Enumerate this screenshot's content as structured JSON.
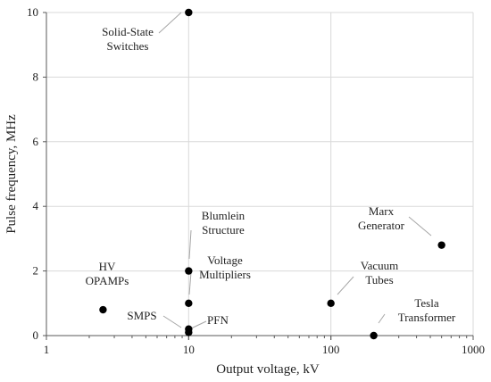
{
  "chart_data": {
    "type": "scatter",
    "title": "",
    "xlabel": "Output voltage, kV",
    "ylabel": "Pulse frequency, MHz",
    "xscale": "log",
    "xlim": [
      1,
      1000
    ],
    "ylim": [
      0,
      10
    ],
    "xticks": [
      "1",
      "10",
      "100",
      "1000"
    ],
    "yticks": [
      "0",
      "2",
      "4",
      "6",
      "8",
      "10"
    ],
    "grid": true,
    "legend": "none",
    "marker_color": "#000000",
    "points": [
      {
        "label": [
          "Solid-State",
          "Switches"
        ],
        "x": 10,
        "y": 10
      },
      {
        "label": [
          "Blumlein",
          "Structure"
        ],
        "x": 10,
        "y": 2.0
      },
      {
        "label": [
          "Voltage",
          "Multipliers"
        ],
        "x": 10,
        "y": 1.0
      },
      {
        "label": [
          "SMPS"
        ],
        "x": 10,
        "y": 0.2
      },
      {
        "label": [
          "PFN"
        ],
        "x": 10,
        "y": 0.1
      },
      {
        "label": [
          "HV",
          "OPAMPs"
        ],
        "x": 2.5,
        "y": 0.8
      },
      {
        "label": [
          "Vacuum",
          "Tubes"
        ],
        "x": 100,
        "y": 1.0
      },
      {
        "label": [
          "Marx",
          "Generator"
        ],
        "x": 600,
        "y": 2.8
      },
      {
        "label": [
          "Tesla",
          "Transformer"
        ],
        "x": 200,
        "y": 0.0
      }
    ]
  }
}
